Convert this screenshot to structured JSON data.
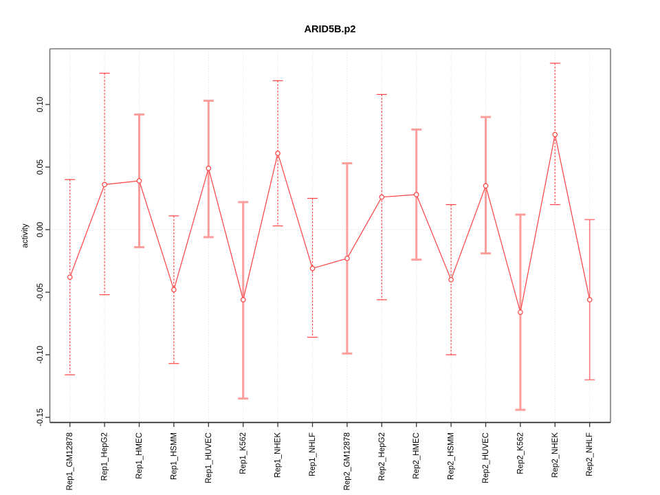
{
  "title": "ARID5B.p2",
  "chart_data": {
    "type": "line",
    "title": "ARID5B.p2",
    "xlabel": "",
    "ylabel": "activity",
    "ylim": [
      -0.1541,
      0.1445
    ],
    "grid": {
      "vertical_gridlines": "dotted at every category",
      "zero_line": "dotted",
      "legend": "none"
    },
    "yticks": [
      {
        "label": "0.10",
        "value": 0.1
      },
      {
        "label": "0.05",
        "value": 0.05
      },
      {
        "label": "0.00",
        "value": 0.0
      },
      {
        "label": "-0.05",
        "value": -0.05
      },
      {
        "label": "-0.10",
        "value": -0.1
      },
      {
        "label": "-0.15",
        "value": -0.15
      }
    ],
    "categories": [
      "Rep1_GM12878",
      "Rep1_HepG2",
      "Rep1_HMEC",
      "Rep1_HSMM",
      "Rep1_HUVEC",
      "Rep1_K562",
      "Rep1_NHEK",
      "Rep1_NHLF",
      "Rep2_GM12878",
      "Rep2_HepG2",
      "Rep2_HMEC",
      "Rep2_HSMM",
      "Rep2_HUVEC",
      "Rep2_K562",
      "Rep2_NHEK",
      "Rep2_NHLF"
    ],
    "series": [
      {
        "name": "activity",
        "marker": "open-circle",
        "values": [
          -0.038,
          0.036,
          0.039,
          -0.048,
          0.049,
          -0.056,
          0.061,
          -0.031,
          -0.023,
          0.026,
          0.028,
          -0.04,
          0.035,
          -0.066,
          0.076,
          -0.056
        ],
        "err_high": [
          0.04,
          0.125,
          0.092,
          0.011,
          0.103,
          0.022,
          0.119,
          0.025,
          0.053,
          0.108,
          0.08,
          0.02,
          0.09,
          0.012,
          0.133,
          0.008
        ],
        "err_low": [
          -0.116,
          -0.052,
          -0.014,
          -0.107,
          -0.006,
          -0.135,
          0.003,
          -0.086,
          -0.099,
          -0.056,
          -0.024,
          -0.1,
          -0.019,
          -0.144,
          0.02,
          -0.12
        ],
        "bar_styles": [
          "dashed",
          "dashed",
          "thick",
          "dashed",
          "thick",
          "thick",
          "dashed",
          "dashed",
          "thick",
          "dashed",
          "thick",
          "dashed",
          "thick",
          "thick",
          "dashed",
          "solid"
        ]
      }
    ],
    "colors": {
      "red": "#ff4040",
      "pink": "#ff9d9d",
      "salmon": "#ff7a7a",
      "grid": "#d9d9d9",
      "box_light": "#9a9a9a",
      "box_dark": "#2b2b2b",
      "box_left": "#666666",
      "tick": "#333333",
      "background": "#ffffff"
    }
  }
}
